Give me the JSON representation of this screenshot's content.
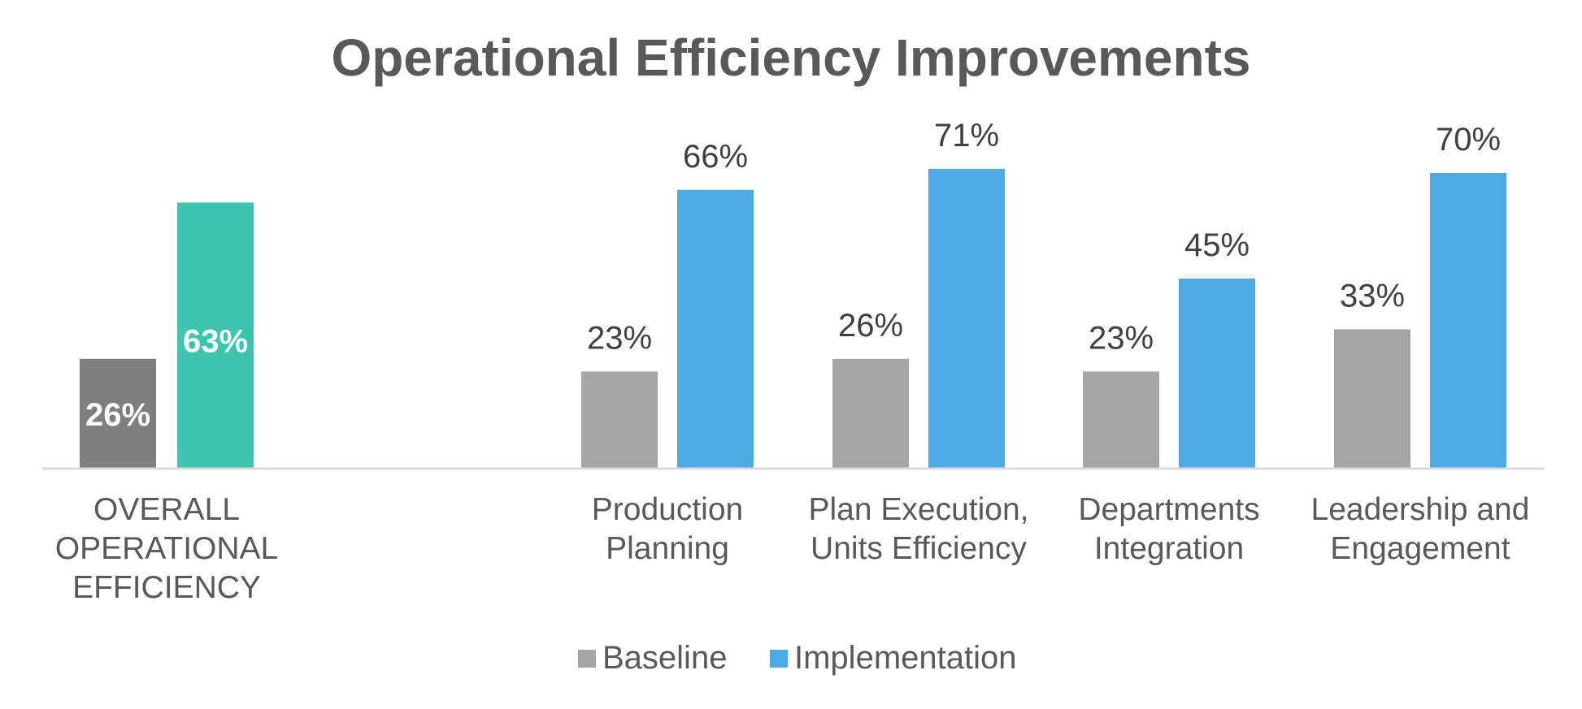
{
  "chart_data": {
    "type": "bar",
    "title": "Operational Efficiency Improvements",
    "xlabel": "",
    "ylabel": "",
    "ylim": [
      0,
      80
    ],
    "grid": false,
    "legend_position": "bottom",
    "overall": {
      "label_lines": [
        "OVERALL",
        "OPERATIONAL",
        "EFFICIENCY"
      ],
      "baseline": {
        "value": 26,
        "label": "26%",
        "color": "#7f7f7f"
      },
      "implementation": {
        "value": 63,
        "label": "63%",
        "color": "#3cc4ae"
      }
    },
    "categories": [
      {
        "lines": [
          "Production",
          "Planning"
        ]
      },
      {
        "lines": [
          "Plan Execution,",
          "Units Efficiency"
        ]
      },
      {
        "lines": [
          "Departments",
          "Integration"
        ]
      },
      {
        "lines": [
          "Leadership and",
          "Engagement"
        ]
      }
    ],
    "series": [
      {
        "name": "Baseline",
        "color": "#a6a6a6",
        "values": [
          23,
          26,
          23,
          33
        ],
        "labels": [
          "23%",
          "26%",
          "23%",
          "33%"
        ]
      },
      {
        "name": "Implementation",
        "color": "#4eaae2",
        "values": [
          66,
          71,
          45,
          70
        ],
        "labels": [
          "66%",
          "71%",
          "45%",
          "70%"
        ]
      }
    ]
  }
}
